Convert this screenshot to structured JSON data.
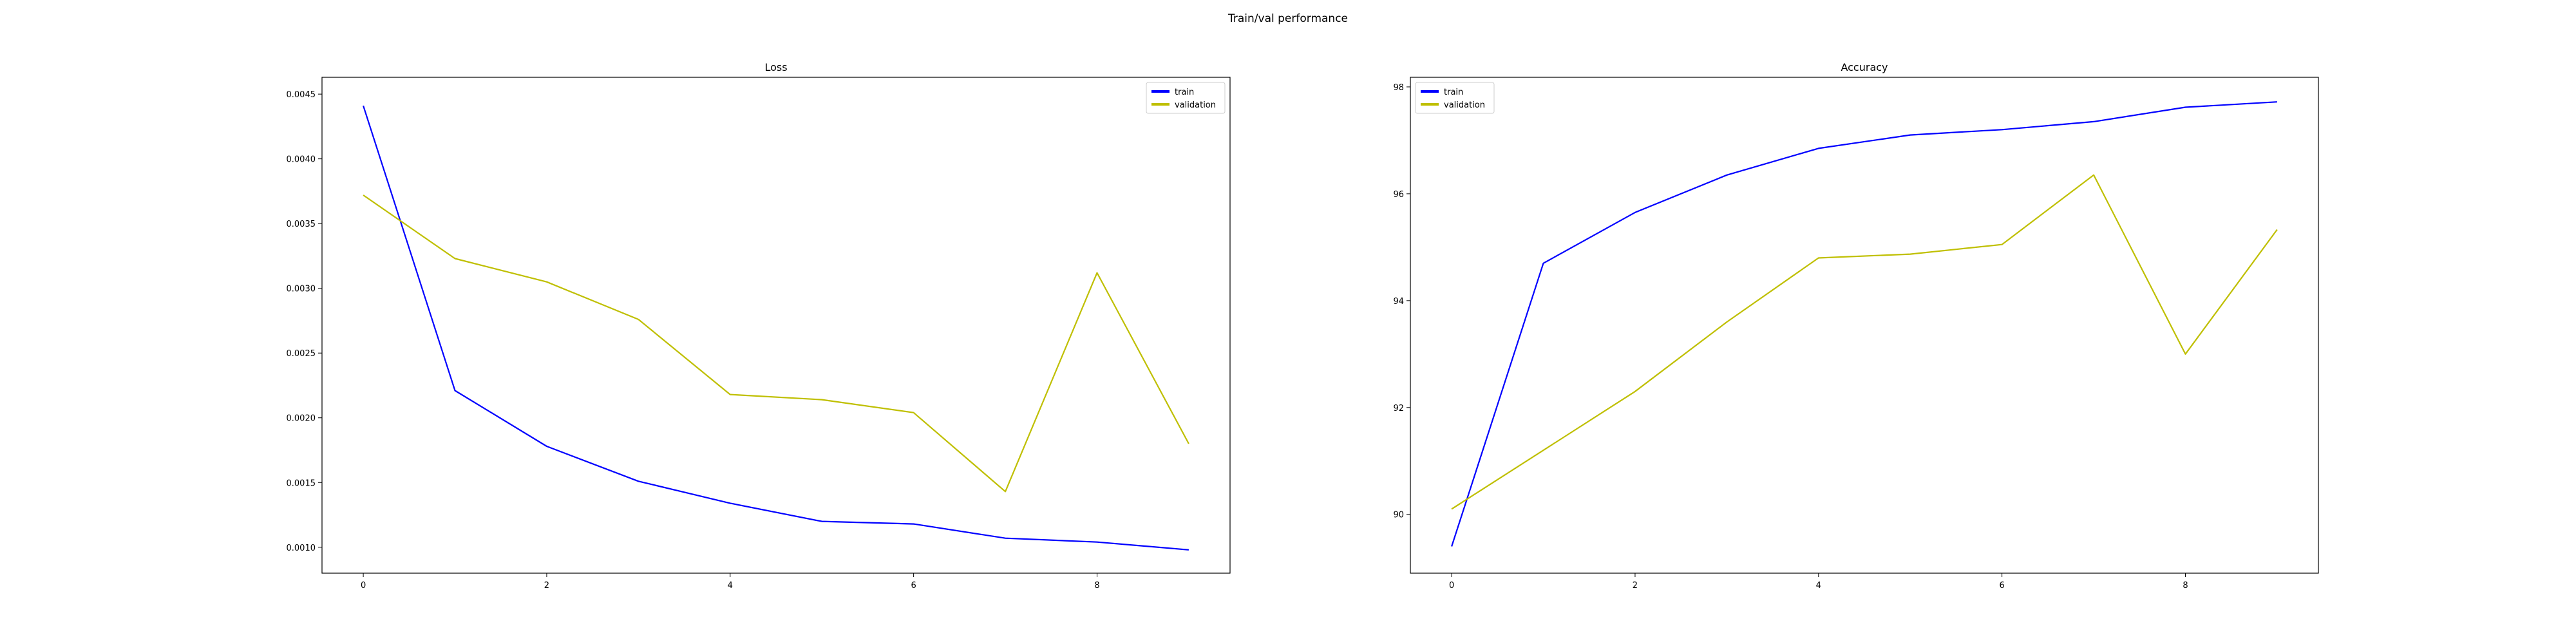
{
  "suptitle": "Train/val performance",
  "chart_data": [
    {
      "type": "line",
      "title": "Loss",
      "xlabel": "",
      "ylabel": "",
      "x": [
        0,
        1,
        2,
        3,
        4,
        5,
        6,
        7,
        8,
        9
      ],
      "xlim": [
        -0.45,
        9.45
      ],
      "ylim": [
        0.0008,
        0.00463
      ],
      "xticks": [
        "0",
        "2",
        "4",
        "6",
        "8"
      ],
      "yticks": [
        "0.0010",
        "0.0015",
        "0.0020",
        "0.0025",
        "0.0030",
        "0.0035",
        "0.0040",
        "0.0045"
      ],
      "legend_position": "upper right",
      "series": [
        {
          "name": "train",
          "color": "#0000ff",
          "values": [
            0.00441,
            0.00221,
            0.00178,
            0.00151,
            0.00134,
            0.0012,
            0.00118,
            0.00107,
            0.00104,
            0.00098
          ]
        },
        {
          "name": "validation",
          "color": "#bfbf00",
          "values": [
            0.00372,
            0.00323,
            0.00305,
            0.00276,
            0.00218,
            0.00214,
            0.00204,
            0.00143,
            0.00312,
            0.0018
          ]
        }
      ]
    },
    {
      "type": "line",
      "title": "Accuracy",
      "xlabel": "",
      "ylabel": "",
      "x": [
        0,
        1,
        2,
        3,
        4,
        5,
        6,
        7,
        8,
        9
      ],
      "xlim": [
        -0.45,
        9.45
      ],
      "ylim": [
        88.9,
        98.18
      ],
      "xticks": [
        "0",
        "2",
        "4",
        "6",
        "8"
      ],
      "yticks": [
        "90",
        "92",
        "94",
        "96",
        "98"
      ],
      "legend_position": "upper left",
      "series": [
        {
          "name": "train",
          "color": "#0000ff",
          "values": [
            89.4,
            94.7,
            95.65,
            96.35,
            96.85,
            97.1,
            97.2,
            97.35,
            97.62,
            97.72
          ]
        },
        {
          "name": "validation",
          "color": "#bfbf00",
          "values": [
            90.1,
            91.2,
            92.3,
            93.6,
            94.8,
            94.87,
            95.05,
            96.35,
            93.0,
            95.33
          ]
        }
      ]
    }
  ]
}
